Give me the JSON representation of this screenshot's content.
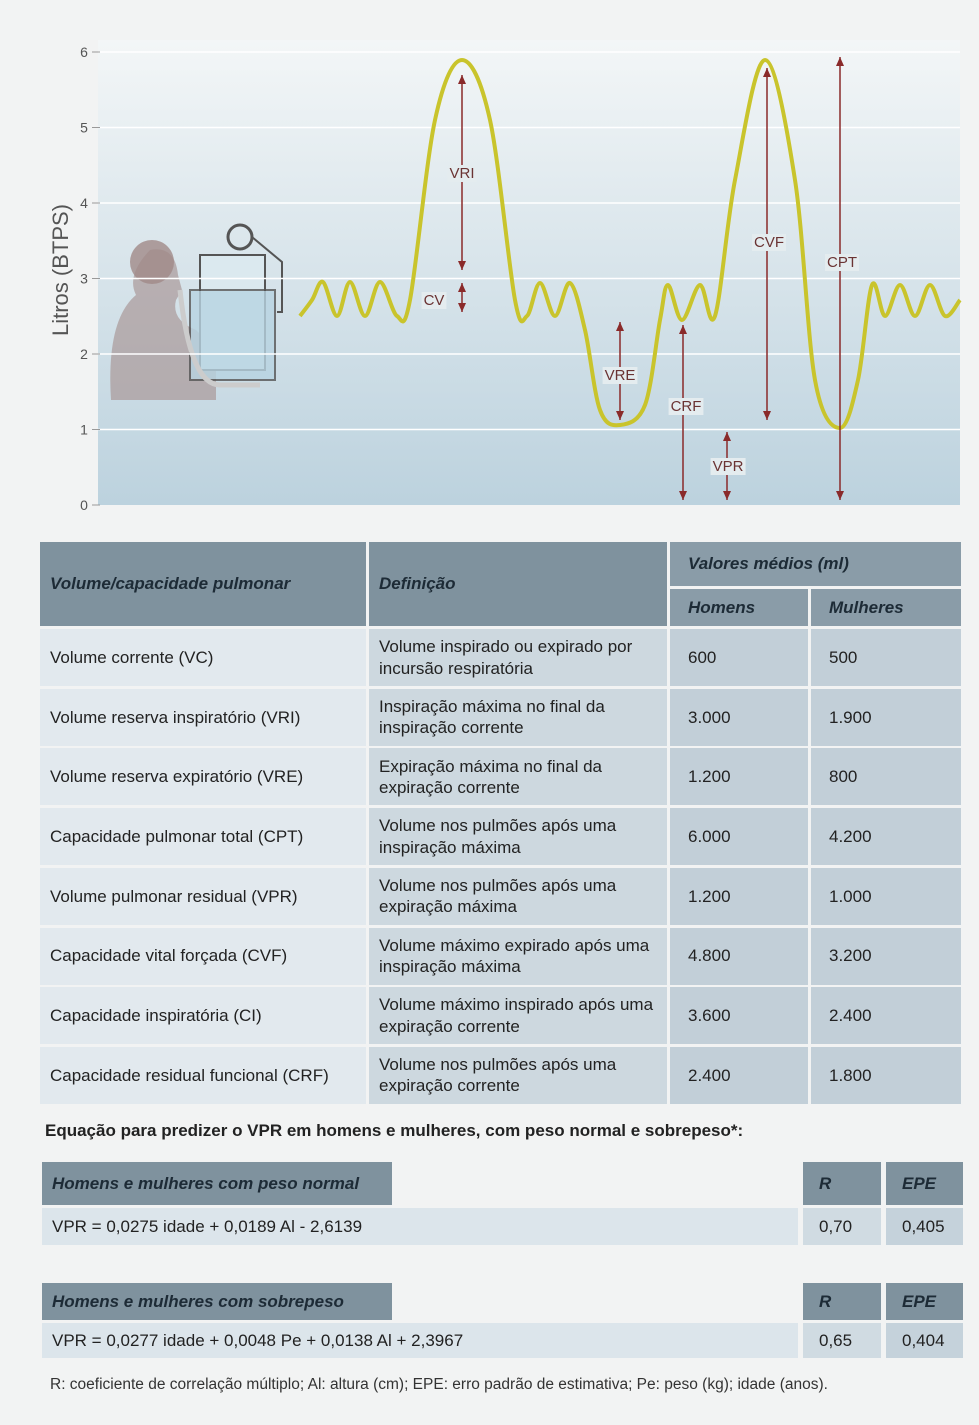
{
  "diagram": {
    "y_label": "Litros (BTPS)",
    "yticks": [
      0,
      1,
      2,
      3,
      4,
      5,
      6
    ],
    "annotations": [
      "VRI",
      "CV",
      "VRE",
      "CRF",
      "VPR",
      "CVF",
      "CPT"
    ]
  },
  "table": {
    "header": {
      "col1": "Volume/capacidade pulmonar",
      "col2": "Definição",
      "group": "Valores médios (ml)",
      "men": "Homens",
      "women": "Mulheres"
    },
    "rows": [
      [
        "Volume corrente (VC)",
        "Volume inspirado ou expirado por incursão respiratória",
        "600",
        "500"
      ],
      [
        "Volume reserva inspiratório (VRI)",
        "Inspiração máxima no final da inspiração corrente",
        "3.000",
        "1.900"
      ],
      [
        "Volume reserva expiratório (VRE)",
        "Expiração máxima no final da expiração corrente",
        "1.200",
        "800"
      ],
      [
        "Capacidade pulmonar total (CPT)",
        "Volume nos pulmões após uma inspiração máxima",
        "6.000",
        "4.200"
      ],
      [
        "Volume pulmonar residual (VPR)",
        "Volume nos pulmões após uma expiração  máxima",
        "1.200",
        "1.000"
      ],
      [
        "Capacidade vital forçada (CVF)",
        "Volume máximo expirado após uma inspiração máxima",
        "4.800",
        "3.200"
      ],
      [
        "Capacidade inspiratória (CI)",
        "Volume máximo inspirado após uma expiração corrente",
        "3.600",
        "2.400"
      ],
      [
        "Capacidade residual funcional (CRF)",
        "Volume nos pulmões após uma expiração corrente",
        "2.400",
        "1.800"
      ]
    ]
  },
  "equation_title": "Equação para predizer o VPR em homens e mulheres, com peso normal e sobrepeso*:",
  "equations": [
    {
      "header": "Homens e mulheres com peso normal",
      "r_label": "R",
      "epe_label": "EPE",
      "formula": "VPR = 0,0275 idade + 0,0189 Al - 2,6139",
      "r": "0,70",
      "epe": "0,405"
    },
    {
      "header": "Homens e mulheres com sobrepeso",
      "r_label": "R",
      "epe_label": "EPE",
      "formula": "VPR = 0,0277 idade + 0,0048 Pe + 0,0138 Al + 2,3967",
      "r": "0,65",
      "epe": "0,404"
    }
  ],
  "footnote": "R: coeficiente de correlação múltiplo; Al: altura (cm); EPE: erro padrão de estimativa; Pe: peso (kg); idade (anos)."
}
